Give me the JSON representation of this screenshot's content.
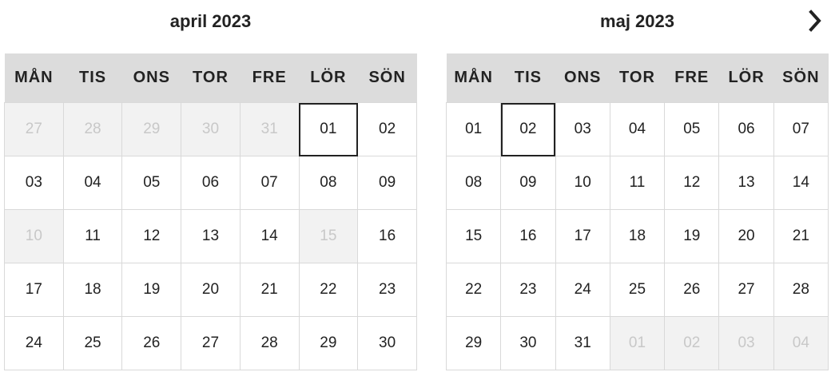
{
  "weekdays": [
    "MÅN",
    "TIS",
    "ONS",
    "TOR",
    "FRE",
    "LÖR",
    "SÖN"
  ],
  "months": [
    {
      "title": "april 2023",
      "weeks": [
        [
          {
            "d": "27",
            "m": true
          },
          {
            "d": "28",
            "m": true
          },
          {
            "d": "29",
            "m": true
          },
          {
            "d": "30",
            "m": true
          },
          {
            "d": "31",
            "m": true
          },
          {
            "d": "01",
            "s": true
          },
          {
            "d": "02"
          }
        ],
        [
          {
            "d": "03"
          },
          {
            "d": "04"
          },
          {
            "d": "05"
          },
          {
            "d": "06"
          },
          {
            "d": "07"
          },
          {
            "d": "08"
          },
          {
            "d": "09"
          }
        ],
        [
          {
            "d": "10",
            "m": true
          },
          {
            "d": "11"
          },
          {
            "d": "12"
          },
          {
            "d": "13"
          },
          {
            "d": "14"
          },
          {
            "d": "15",
            "m": true
          },
          {
            "d": "16"
          }
        ],
        [
          {
            "d": "17"
          },
          {
            "d": "18"
          },
          {
            "d": "19"
          },
          {
            "d": "20"
          },
          {
            "d": "21"
          },
          {
            "d": "22"
          },
          {
            "d": "23"
          }
        ],
        [
          {
            "d": "24"
          },
          {
            "d": "25"
          },
          {
            "d": "26"
          },
          {
            "d": "27"
          },
          {
            "d": "28"
          },
          {
            "d": "29"
          },
          {
            "d": "30"
          }
        ]
      ]
    },
    {
      "title": "maj 2023",
      "weeks": [
        [
          {
            "d": "01"
          },
          {
            "d": "02",
            "s": true
          },
          {
            "d": "03"
          },
          {
            "d": "04"
          },
          {
            "d": "05"
          },
          {
            "d": "06"
          },
          {
            "d": "07"
          }
        ],
        [
          {
            "d": "08"
          },
          {
            "d": "09"
          },
          {
            "d": "10"
          },
          {
            "d": "11"
          },
          {
            "d": "12"
          },
          {
            "d": "13"
          },
          {
            "d": "14"
          }
        ],
        [
          {
            "d": "15"
          },
          {
            "d": "16"
          },
          {
            "d": "17"
          },
          {
            "d": "18"
          },
          {
            "d": "19"
          },
          {
            "d": "20"
          },
          {
            "d": "21"
          }
        ],
        [
          {
            "d": "22"
          },
          {
            "d": "23"
          },
          {
            "d": "24"
          },
          {
            "d": "25"
          },
          {
            "d": "26"
          },
          {
            "d": "27"
          },
          {
            "d": "28"
          }
        ],
        [
          {
            "d": "29"
          },
          {
            "d": "30"
          },
          {
            "d": "31"
          },
          {
            "d": "01",
            "m": true
          },
          {
            "d": "02",
            "m": true
          },
          {
            "d": "03",
            "m": true
          },
          {
            "d": "04",
            "m": true
          }
        ]
      ]
    }
  ],
  "nav": {
    "next_icon": "chevron-right-icon"
  },
  "colors": {
    "header_bg": "#dcdcdc",
    "muted_bg": "#f2f2f2",
    "muted_text": "#c8c8c8",
    "text": "#222222"
  }
}
